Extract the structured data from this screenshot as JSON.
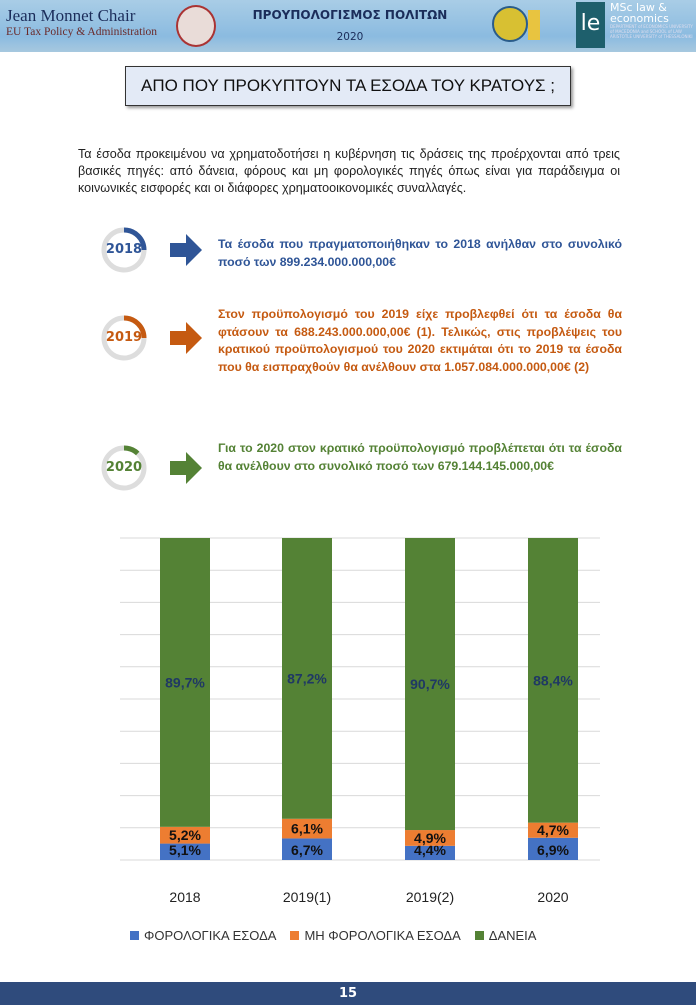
{
  "header": {
    "org_line1": "Jean Monnet Chair",
    "org_line2": "EU Tax Policy & Administration",
    "title": "ΠΡΟΥΠΟΛΟΓΙΣΜΟΣ ΠΟΛΙΤΩΝ",
    "year": "2020",
    "logo_text": "le",
    "msc_line1": "MSc law &",
    "msc_line2": "economics",
    "msc_small": "DEPARTMENT of ECONOMICS UNIVERSITY of MACEDONIA and SCHOOL of LAW ARISTOTLE UNIVERSITY of THESSALONIKI"
  },
  "page_title": "ΑΠΟ ΠΟΥ ΠΡΟΚΥΠΤΟΥΝ ΤΑ ΕΣΟΔΑ ΤΟΥ ΚΡΑΤΟΥΣ ;",
  "intro": "Τα έσοδα προκειμένου να χρηματοδοτήσει η κυβέρνηση τις δράσεις της προέρχονται από τρεις βασικές πηγές: από δάνεια, φόρους και μη φορολογικές πηγές όπως είναι για παράδειγμα οι κοινωνικές εισφορές και οι διάφορες χρηματοοικονομικές συναλλαγές.",
  "points": [
    {
      "year": "2018",
      "color": "#2f5597",
      "text": "Τα έσοδα που πραγματοποιήθηκαν το 2018 ανήλθαν στο συνολικό ποσό των 899.234.000.000,00€"
    },
    {
      "year": "2019",
      "color": "#c55a11",
      "text": "Στον προϋπολογισμό του 2019 είχε προβλεφθεί ότι τα έσοδα θα φτάσουν τα 688.243.000.000,00€ (1). Τελικώς, στις προβλέψεις του κρατικού προϋπολογισμού του 2020 εκτιμάται ότι το 2019 τα έσοδα που θα εισπραχθούν θα ανέλθουν στα 1.057.084.000.000,00€ (2)"
    },
    {
      "year": "2020",
      "color": "#548235",
      "text": "Για το 2020 στον κρατικό προϋπολογισμό προβλέπεται ότι τα έσοδα θα ανέλθουν στο συνολικό ποσό των 679.144.145.000,00€"
    }
  ],
  "chart_data": {
    "type": "bar",
    "stacked": true,
    "categories": [
      "2018",
      "2019(1)",
      "2019(2)",
      "2020"
    ],
    "ylim": [
      0,
      100
    ],
    "grid": true,
    "legend_position": "bottom",
    "series": [
      {
        "name": "ΦΟΡΟΛΟΓΙΚΑ ΕΣΟΔΑ",
        "color": "#4472c4",
        "values": [
          5.1,
          6.7,
          4.4,
          6.9
        ],
        "labels": [
          "5,1%",
          "6,7%",
          "4,4%",
          "6,9%"
        ]
      },
      {
        "name": "ΜΗ ΦΟΡΟΛΟΓΙΚΑ ΕΣΟΔΑ",
        "color": "#ed7d31",
        "values": [
          5.2,
          6.1,
          4.9,
          4.7
        ],
        "labels": [
          "5,2%",
          "6,1%",
          "4,9%",
          "4,7%"
        ]
      },
      {
        "name": "ΔΑΝΕΙΑ",
        "color": "#548235",
        "values": [
          89.7,
          87.2,
          90.7,
          88.4
        ],
        "labels": [
          "89,7%",
          "87,2%",
          "90,7%",
          "88,4%"
        ]
      }
    ]
  },
  "footer": {
    "page_number": "15"
  }
}
